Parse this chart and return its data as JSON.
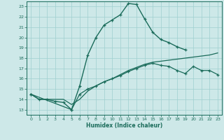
{
  "title": "",
  "xlabel": "Humidex (Indice chaleur)",
  "xlim": [
    -0.5,
    23.5
  ],
  "ylim": [
    12.5,
    23.5
  ],
  "xticks": [
    0,
    1,
    2,
    3,
    4,
    5,
    6,
    7,
    8,
    9,
    10,
    11,
    12,
    13,
    14,
    15,
    16,
    17,
    18,
    19,
    20,
    21,
    22,
    23
  ],
  "yticks": [
    13,
    14,
    15,
    16,
    17,
    18,
    19,
    20,
    21,
    22,
    23
  ],
  "bg_color": "#cde8e8",
  "line_color": "#1a6b5a",
  "grid_color": "#9fcfcf",
  "line1_x": [
    0,
    1,
    2,
    3,
    4,
    5,
    6,
    7,
    8,
    9,
    10,
    11,
    12,
    13,
    14,
    15,
    16,
    17,
    18,
    19
  ],
  "line1_y": [
    14.5,
    14.0,
    14.0,
    13.8,
    13.7,
    13.0,
    15.3,
    18.3,
    20.0,
    21.2,
    21.7,
    22.2,
    23.3,
    23.2,
    21.8,
    20.5,
    19.8,
    19.5,
    19.1,
    18.8
  ],
  "line2_x": [
    0,
    1,
    2,
    3,
    4,
    5,
    6,
    7,
    8,
    9,
    10,
    11,
    12,
    13,
    14,
    15,
    16,
    17,
    18,
    19,
    20,
    21,
    22,
    23
  ],
  "line2_y": [
    14.5,
    14.0,
    14.0,
    14.0,
    14.0,
    13.5,
    14.0,
    14.8,
    15.3,
    15.7,
    16.0,
    16.4,
    16.8,
    17.1,
    17.4,
    17.6,
    17.7,
    17.8,
    17.9,
    18.0,
    18.1,
    18.2,
    18.3,
    18.5
  ],
  "line3_x": [
    0,
    5,
    6,
    7,
    8,
    9,
    10,
    11,
    12,
    13,
    14,
    15,
    16,
    17,
    18,
    19,
    20,
    21,
    22,
    23
  ],
  "line3_y": [
    14.5,
    13.0,
    14.5,
    15.0,
    15.3,
    15.7,
    16.0,
    16.3,
    16.7,
    17.0,
    17.3,
    17.5,
    17.3,
    17.2,
    16.8,
    16.5,
    17.2,
    16.8,
    16.8,
    16.4
  ]
}
